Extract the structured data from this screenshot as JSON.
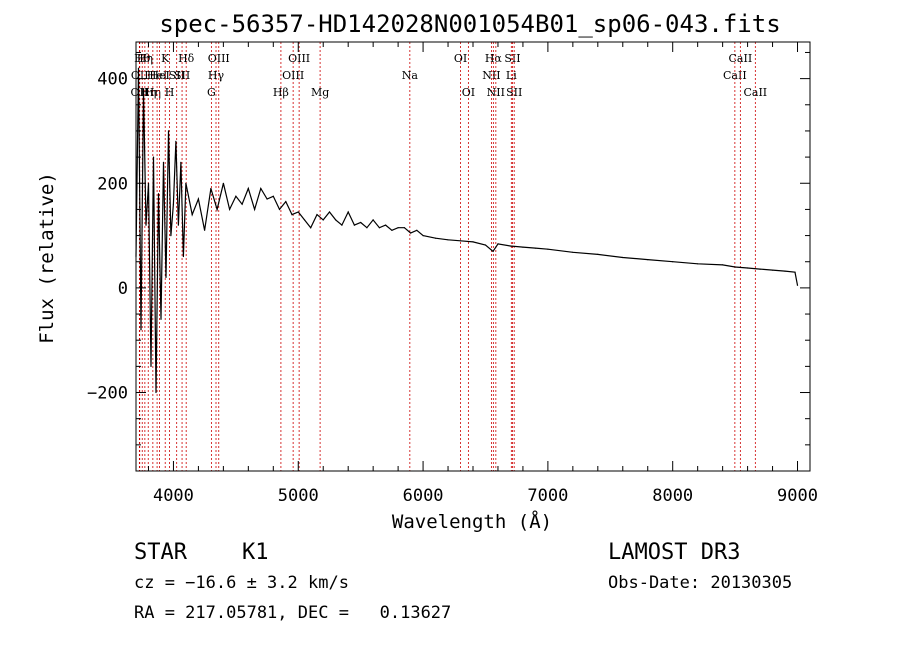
{
  "chart_data": {
    "type": "line",
    "title": "spec-56357-HD142028N001054B01_sp06-043.fits",
    "xlabel": "Wavelength (Å)",
    "ylabel": "Flux (relative)",
    "xlim": [
      3700,
      9100
    ],
    "ylim": [
      -350,
      470
    ],
    "xticks": [
      4000,
      5000,
      6000,
      7000,
      8000,
      9000
    ],
    "yticks": [
      -200,
      0,
      200,
      400
    ],
    "ytick_labels": [
      "−200",
      "0",
      "200",
      "400"
    ],
    "series": [
      {
        "name": "flux",
        "x": [
          3700,
          3720,
          3740,
          3760,
          3780,
          3800,
          3820,
          3840,
          3860,
          3880,
          3900,
          3920,
          3940,
          3960,
          3980,
          4000,
          4020,
          4040,
          4060,
          4080,
          4100,
          4150,
          4200,
          4250,
          4300,
          4350,
          4400,
          4450,
          4500,
          4550,
          4600,
          4650,
          4700,
          4750,
          4800,
          4850,
          4900,
          4950,
          5000,
          5050,
          5100,
          5150,
          5200,
          5250,
          5300,
          5350,
          5400,
          5450,
          5500,
          5550,
          5600,
          5650,
          5700,
          5750,
          5800,
          5850,
          5900,
          5950,
          6000,
          6100,
          6200,
          6300,
          6400,
          6500,
          6560,
          6600,
          6700,
          6800,
          6900,
          7000,
          7200,
          7400,
          7600,
          7800,
          8000,
          8200,
          8400,
          8500,
          8600,
          8700,
          8800,
          8900,
          8980,
          9000
        ],
        "y": [
          60,
          420,
          -80,
          380,
          120,
          200,
          -150,
          250,
          -200,
          180,
          -60,
          240,
          20,
          300,
          100,
          160,
          280,
          120,
          240,
          60,
          200,
          140,
          170,
          110,
          190,
          150,
          200,
          150,
          175,
          160,
          190,
          150,
          190,
          170,
          175,
          150,
          165,
          140,
          145,
          130,
          115,
          140,
          130,
          145,
          130,
          120,
          145,
          120,
          125,
          115,
          130,
          115,
          120,
          110,
          115,
          115,
          105,
          110,
          100,
          95,
          92,
          90,
          88,
          82,
          70,
          84,
          80,
          78,
          76,
          74,
          68,
          64,
          58,
          54,
          50,
          46,
          44,
          40,
          38,
          36,
          34,
          32,
          30,
          5
        ]
      }
    ],
    "lines": [
      {
        "wave": 3727,
        "row": 2,
        "label": "OII"
      },
      {
        "wave": 3730,
        "row": 1,
        "label": "OII"
      },
      {
        "wave": 3750,
        "row": 0,
        "label": "Hθ"
      },
      {
        "wave": 3771,
        "row": 0,
        "label": "Hη"
      },
      {
        "wave": 3798,
        "row": 2,
        "label": "Hη"
      },
      {
        "wave": 3835,
        "row": 2,
        "label": "Hη"
      },
      {
        "wave": 3869,
        "row": 1,
        "label": "HeI"
      },
      {
        "wave": 3889,
        "row": 1,
        "label": "HeI"
      },
      {
        "wave": 3934,
        "row": 0,
        "label": "K"
      },
      {
        "wave": 3969,
        "row": 2,
        "label": "H"
      },
      {
        "wave": 4026,
        "row": 1,
        "label": "SII"
      },
      {
        "wave": 4069,
        "row": 1,
        "label": "SII"
      },
      {
        "wave": 4102,
        "row": 0,
        "label": "Hδ"
      },
      {
        "wave": 4304,
        "row": 2,
        "label": "G"
      },
      {
        "wave": 4341,
        "row": 1,
        "label": "Hγ"
      },
      {
        "wave": 4363,
        "row": 0,
        "label": "OIII"
      },
      {
        "wave": 4861,
        "row": 2,
        "label": "Hβ"
      },
      {
        "wave": 4959,
        "row": 1,
        "label": "OIII"
      },
      {
        "wave": 5007,
        "row": 0,
        "label": "OIII"
      },
      {
        "wave": 5175,
        "row": 2,
        "label": "Mg"
      },
      {
        "wave": 5894,
        "row": 1,
        "label": "Na"
      },
      {
        "wave": 6300,
        "row": 0,
        "label": "OI"
      },
      {
        "wave": 6363,
        "row": 2,
        "label": "OI"
      },
      {
        "wave": 6548,
        "row": 1,
        "label": "NII"
      },
      {
        "wave": 6563,
        "row": 0,
        "label": "Hα"
      },
      {
        "wave": 6583,
        "row": 2,
        "label": "NII"
      },
      {
        "wave": 6707,
        "row": 1,
        "label": "Li"
      },
      {
        "wave": 6716,
        "row": 0,
        "label": "SII"
      },
      {
        "wave": 6730,
        "row": 2,
        "label": "SII"
      },
      {
        "wave": 8498,
        "row": 1,
        "label": "CaII"
      },
      {
        "wave": 8542,
        "row": 0,
        "label": "CaII"
      },
      {
        "wave": 8662,
        "row": 2,
        "label": "CaII"
      }
    ]
  },
  "info": {
    "class": "STAR",
    "subclass": "K1",
    "survey": "LAMOST DR3",
    "cz": "cz = −16.6 ± 3.2 km/s",
    "obs_date": "Obs-Date: 20130305",
    "radec": "RA = 217.05781, DEC =   0.13627"
  },
  "colors": {
    "line_marker": "#cc0000",
    "spectrum": "#000000"
  }
}
